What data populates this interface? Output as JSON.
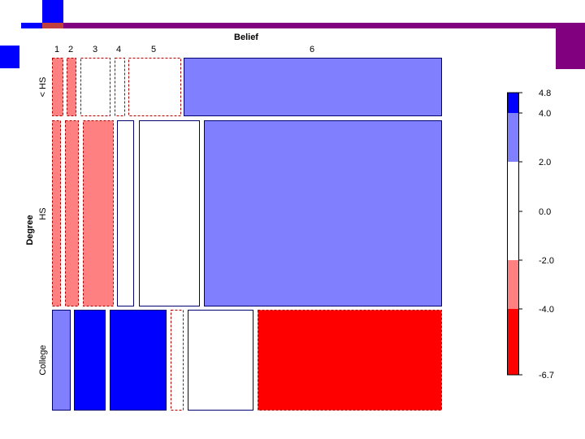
{
  "chart_data": {
    "type": "mosaic",
    "xlabel": "Belief",
    "ylabel": "Degree",
    "columns": [
      "1",
      "2",
      "3",
      "4",
      "5",
      "6"
    ],
    "rows": [
      "< HS",
      "HS",
      "College"
    ],
    "residuals": [
      [
        -2.5,
        -3.0,
        -1.5,
        -0.5,
        -1.0,
        3.0
      ],
      [
        -3.0,
        -2.5,
        -3.0,
        0.5,
        1.0,
        3.0
      ],
      [
        3.0,
        4.5,
        4.5,
        -0.5,
        1.0,
        -5.0
      ]
    ],
    "legend": {
      "breaks": [
        -6.7,
        -4.0,
        -2.0,
        0.0,
        2.0,
        4.0,
        4.8
      ],
      "labels": [
        "4.8",
        "4.0",
        "2.0",
        "0.0",
        "-2.0",
        "-4.0",
        "-6.7"
      ],
      "colors": [
        "#ff0000",
        "#ff8080",
        "#ffffff",
        "#ffffff",
        "#8080ff",
        "#0000ff"
      ]
    }
  },
  "colors": {
    "strong_positive": "#0000ff",
    "positive": "#8080ff",
    "neutral": "#ffffff",
    "negative": "#ff8080",
    "strong_negative": "#ff0000",
    "slide_accent": "#800080"
  }
}
